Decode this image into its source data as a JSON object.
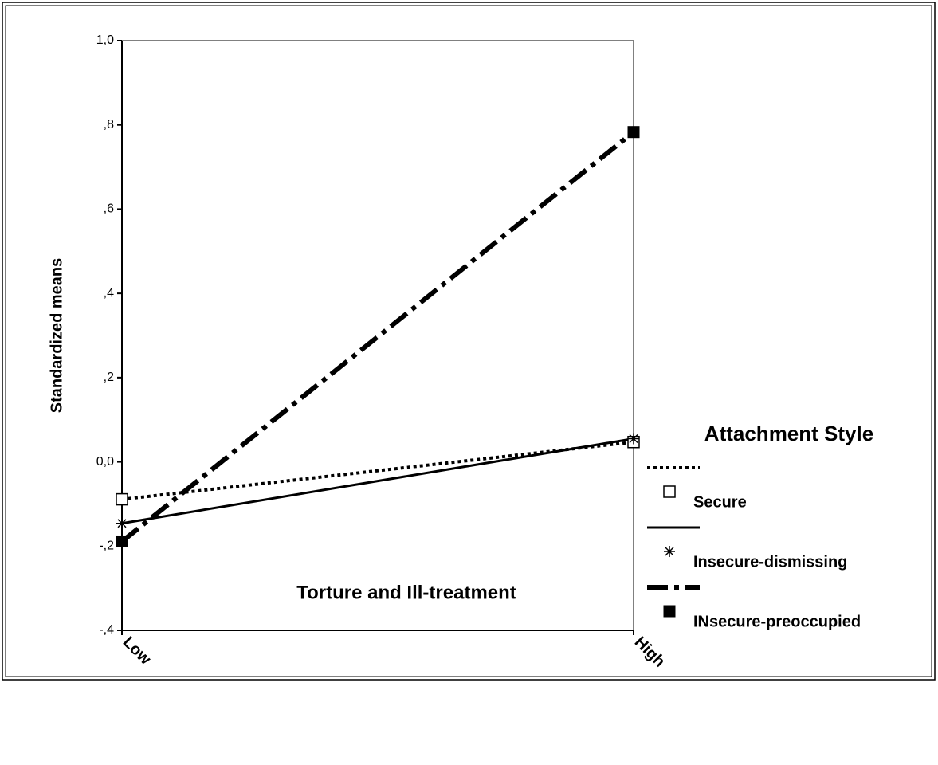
{
  "chart_data": {
    "type": "line",
    "x_label": "Torture and Ill-treatment",
    "y_label": "Standardized means",
    "legend_title": "Attachment Style",
    "categories": [
      "Low",
      "High"
    ],
    "series": [
      {
        "name": "Secure",
        "color": "#000000",
        "style": "dotted",
        "marker": "open-square",
        "values": [
          -0.089,
          0.047
        ]
      },
      {
        "name": "Insecure-dismissing",
        "color": "#000000",
        "style": "solid",
        "marker": "asterisk",
        "values": [
          -0.146,
          0.055
        ]
      },
      {
        "name": "INsecure-preoccupied",
        "color": "#000000",
        "style": "dash-dot",
        "marker": "filled-square",
        "values": [
          -0.189,
          0.783
        ]
      }
    ],
    "ylim": [
      -0.4,
      1.0
    ],
    "yticks": [
      {
        "value": -0.4,
        "label": "-,4"
      },
      {
        "value": -0.2,
        "label": "-,2"
      },
      {
        "value": 0,
        "label": "0,0"
      },
      {
        "value": 0.2,
        "label": ",2"
      },
      {
        "value": 0.4,
        "label": ",4"
      },
      {
        "value": 0.6,
        "label": ",6"
      },
      {
        "value": 0.8,
        "label": ",8"
      },
      {
        "value": 1.0,
        "label": "1,0"
      }
    ],
    "grid": false
  }
}
